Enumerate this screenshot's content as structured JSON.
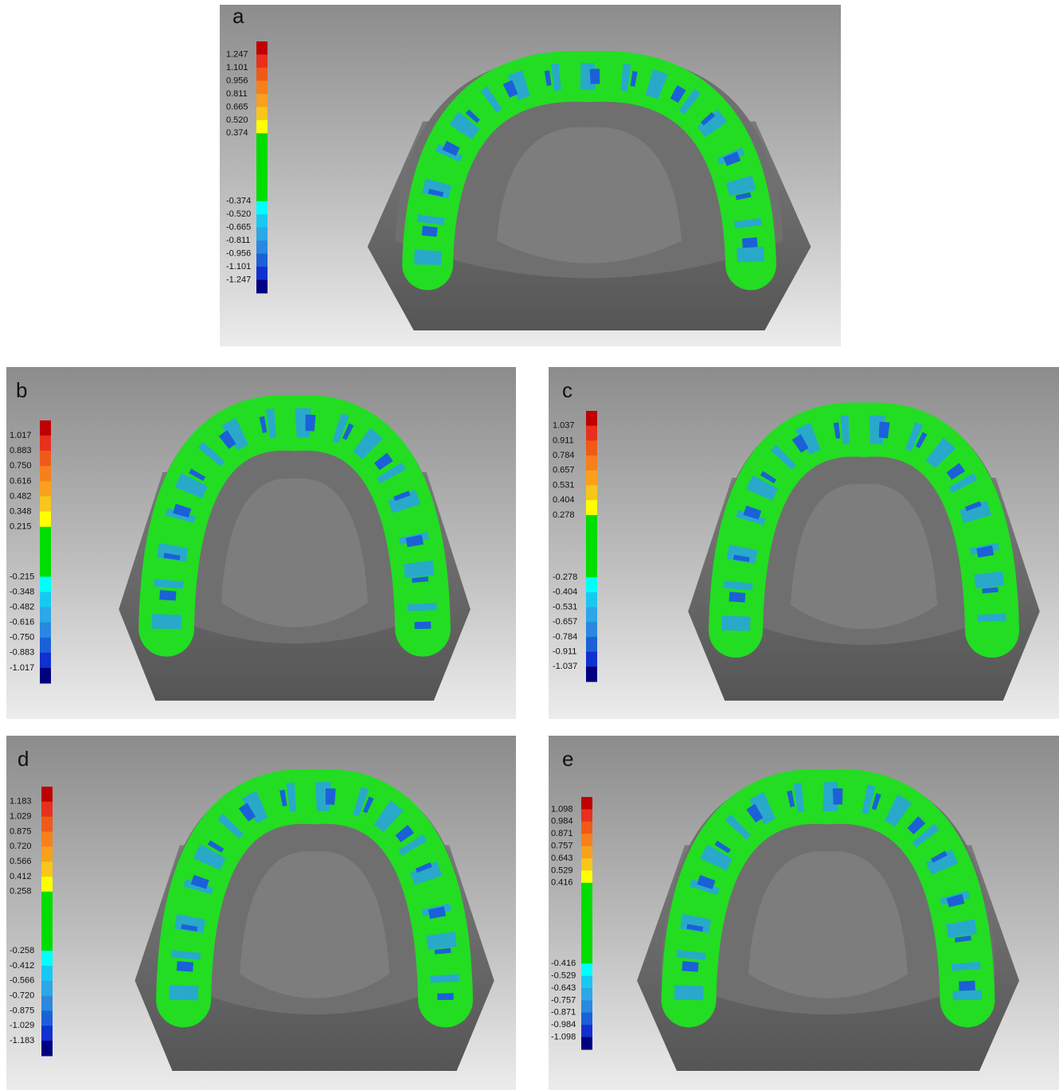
{
  "panels": [
    {
      "label": "a",
      "scale": [
        "1.247",
        "1.101",
        "0.956",
        "0.811",
        "0.665",
        "0.520",
        "0.374",
        "-0.374",
        "-0.520",
        "-0.665",
        "-0.811",
        "-0.956",
        "-1.101",
        "-1.247"
      ]
    },
    {
      "label": "b",
      "scale": [
        "1.017",
        "0.883",
        "0.750",
        "0.616",
        "0.482",
        "0.348",
        "0.215",
        "-0.215",
        "-0.348",
        "-0.482",
        "-0.616",
        "-0.750",
        "-0.883",
        "-1.017"
      ]
    },
    {
      "label": "c",
      "scale": [
        "1.037",
        "0.911",
        "0.784",
        "0.657",
        "0.531",
        "0.404",
        "0.278",
        "-0.278",
        "-0.404",
        "-0.531",
        "-0.657",
        "-0.784",
        "-0.911",
        "-1.037"
      ]
    },
    {
      "label": "d",
      "scale": [
        "1.183",
        "1.029",
        "0.875",
        "0.720",
        "0.566",
        "0.412",
        "0.258",
        "-0.258",
        "-0.412",
        "-0.566",
        "-0.720",
        "-0.875",
        "-1.029",
        "-1.183"
      ]
    },
    {
      "label": "e",
      "scale": [
        "1.098",
        "0.984",
        "0.871",
        "0.757",
        "0.643",
        "0.529",
        "0.416",
        "-0.416",
        "-0.529",
        "-0.643",
        "-0.757",
        "-0.871",
        "-0.984",
        "-1.098"
      ]
    }
  ]
}
